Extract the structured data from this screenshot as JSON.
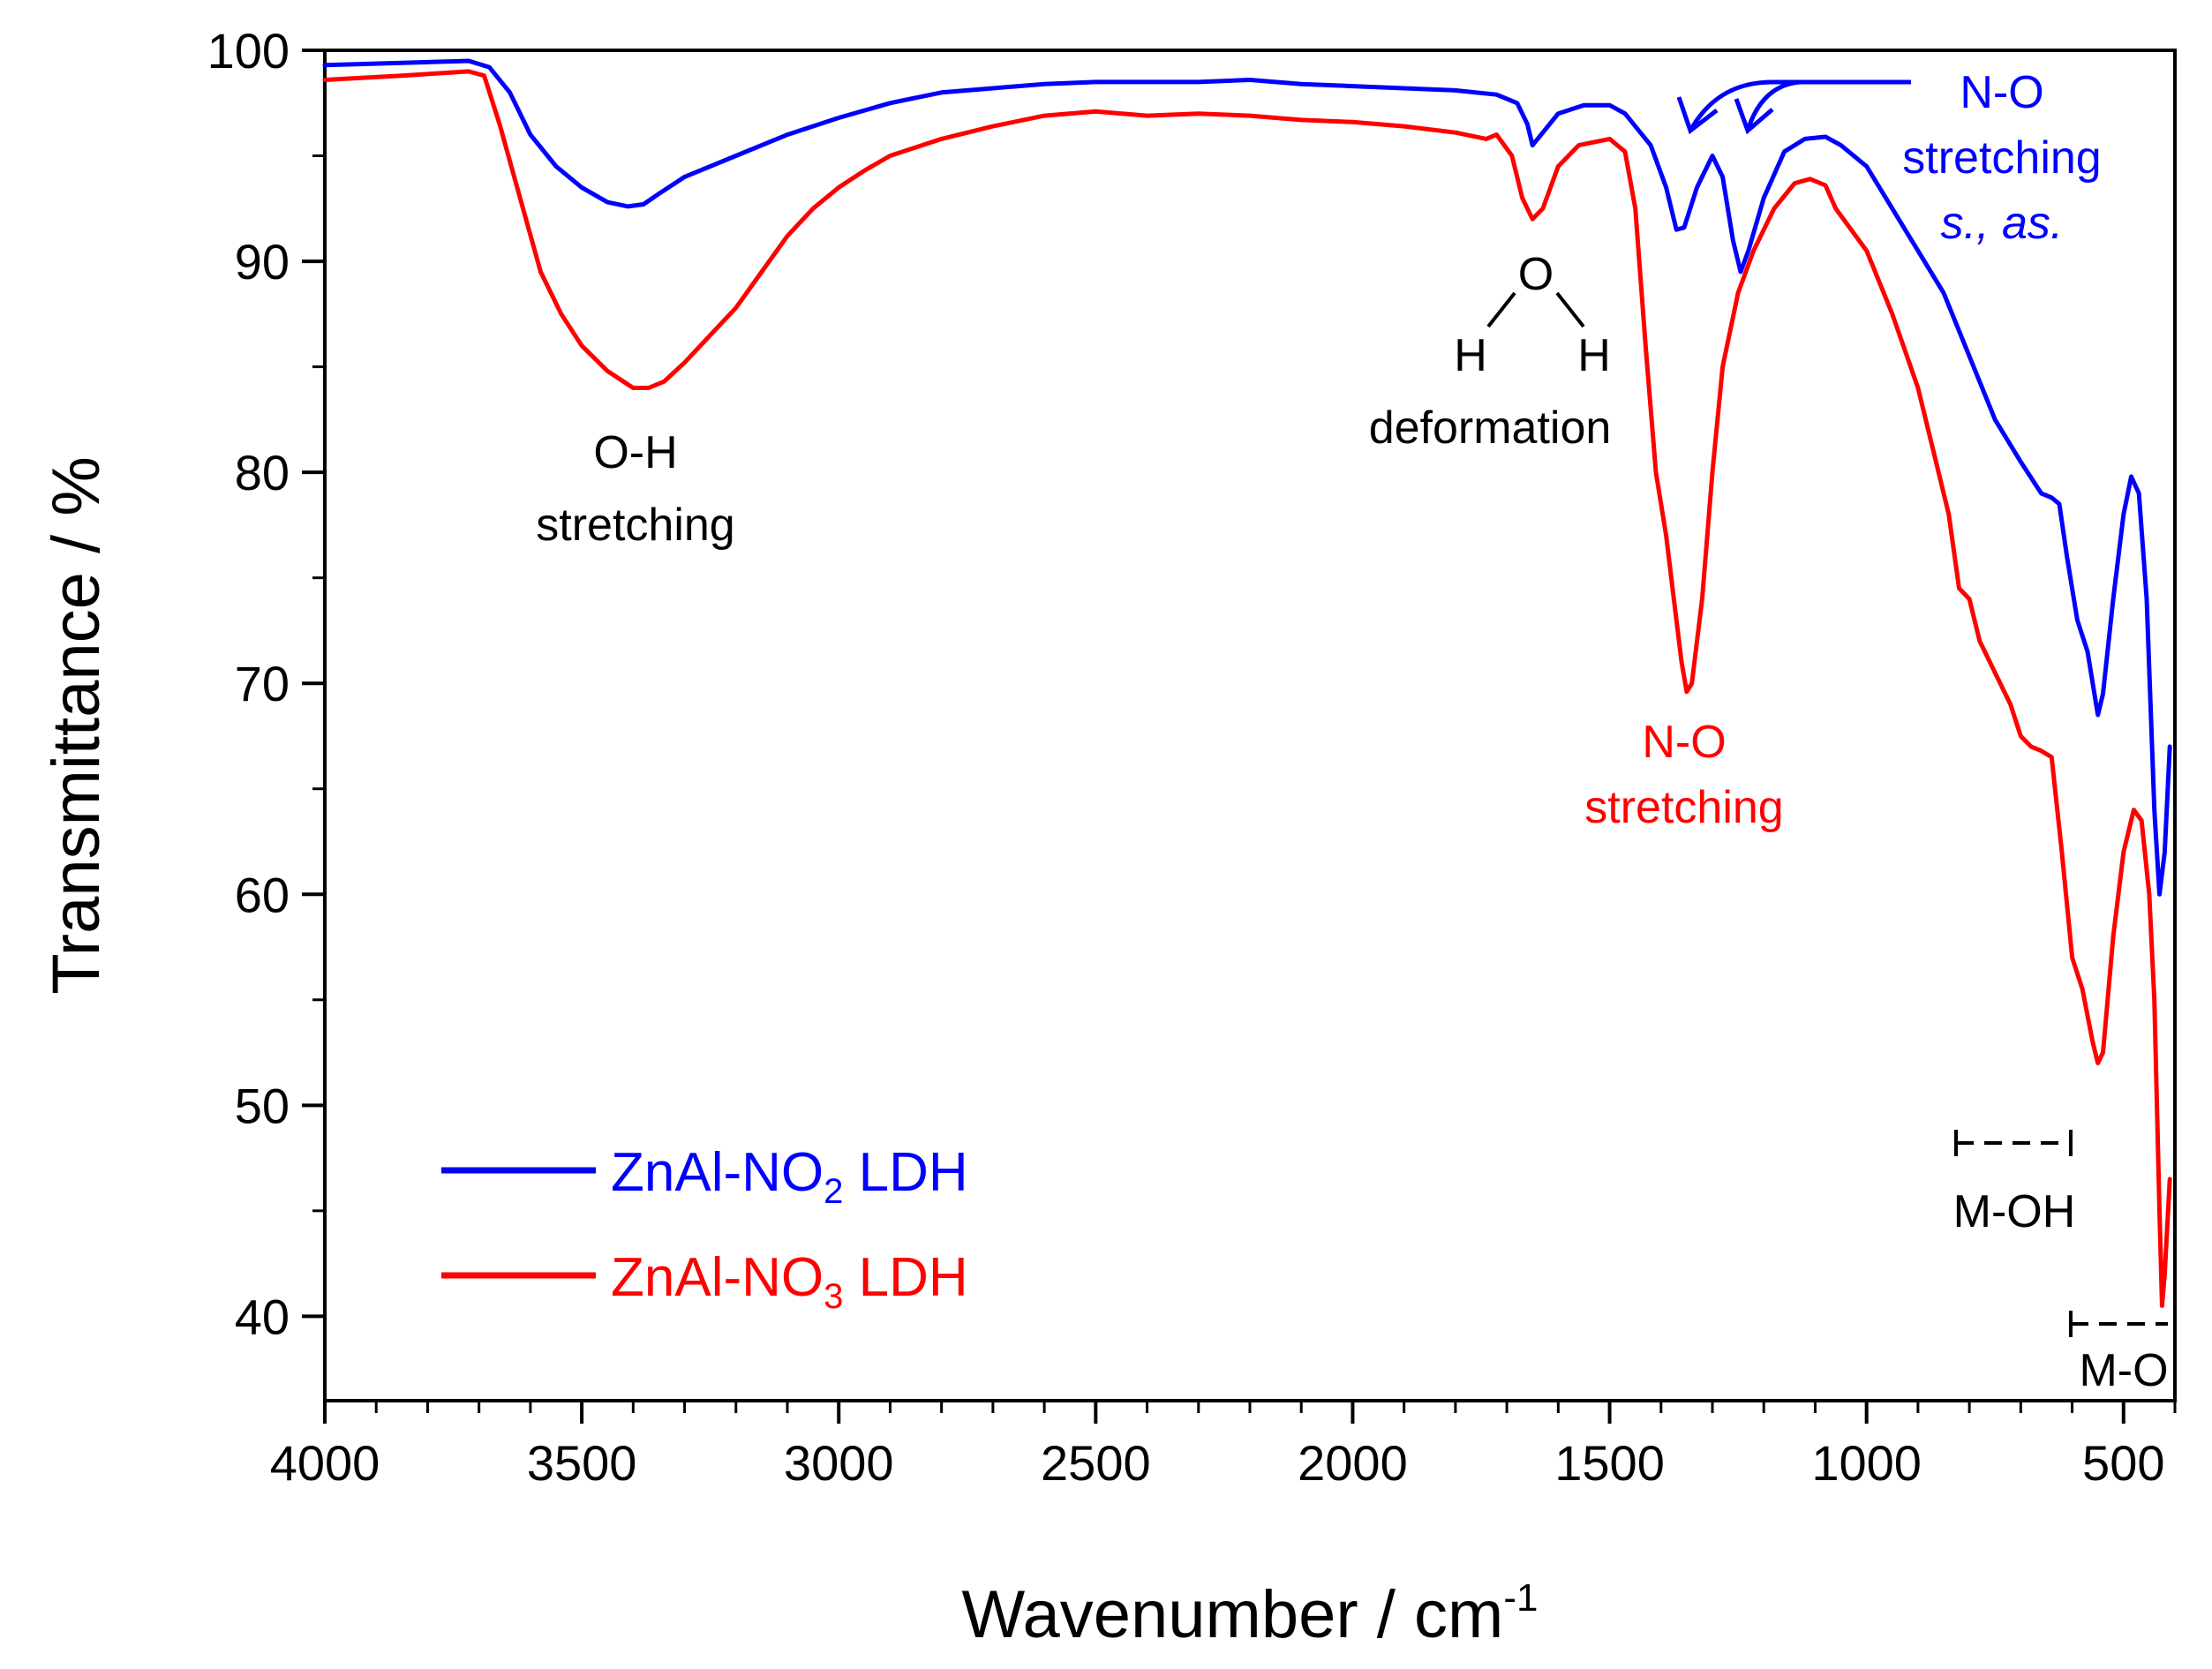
{
  "chart_data": {
    "type": "line",
    "title": "",
    "xlabel": "Wavenumber / cm",
    "xlabel_superscript": "-1",
    "ylabel": "Transmittance / %",
    "xlim": [
      4000,
      400
    ],
    "ylim": [
      36,
      100
    ],
    "x_reversed": true,
    "grid": false,
    "legend_position": "bottom-left",
    "x_ticks": [
      4000,
      3500,
      3000,
      2500,
      2000,
      1500,
      1000,
      500
    ],
    "x_tick_labels": [
      "4000",
      "3500",
      "3000",
      "2500",
      "2000",
      "1500",
      "1000",
      "500"
    ],
    "y_ticks": [
      40,
      50,
      60,
      70,
      80,
      90,
      100
    ],
    "y_tick_labels": [
      "40",
      "50",
      "60",
      "70",
      "80",
      "90",
      "100"
    ],
    "series": [
      {
        "name": "ZnAl-NO2 LDH",
        "legend_base": "ZnAl-NO",
        "legend_sub": "2",
        "legend_suffix": " LDH",
        "color": "#0000ff",
        "points": [
          [
            4000,
            99.3
          ],
          [
            3850,
            99.4
          ],
          [
            3720,
            99.5
          ],
          [
            3680,
            99.2
          ],
          [
            3640,
            98.0
          ],
          [
            3600,
            96.0
          ],
          [
            3550,
            94.5
          ],
          [
            3500,
            93.5
          ],
          [
            3450,
            92.8
          ],
          [
            3410,
            92.6
          ],
          [
            3380,
            92.7
          ],
          [
            3350,
            93.2
          ],
          [
            3300,
            94.0
          ],
          [
            3200,
            95.0
          ],
          [
            3100,
            96.0
          ],
          [
            3000,
            96.8
          ],
          [
            2900,
            97.5
          ],
          [
            2800,
            98.0
          ],
          [
            2700,
            98.2
          ],
          [
            2600,
            98.4
          ],
          [
            2500,
            98.5
          ],
          [
            2400,
            98.5
          ],
          [
            2300,
            98.5
          ],
          [
            2200,
            98.6
          ],
          [
            2100,
            98.4
          ],
          [
            2000,
            98.3
          ],
          [
            1900,
            98.2
          ],
          [
            1800,
            98.1
          ],
          [
            1720,
            97.9
          ],
          [
            1680,
            97.5
          ],
          [
            1660,
            96.5
          ],
          [
            1650,
            95.5
          ],
          [
            1640,
            95.8
          ],
          [
            1600,
            97.0
          ],
          [
            1550,
            97.4
          ],
          [
            1500,
            97.4
          ],
          [
            1470,
            97.0
          ],
          [
            1420,
            95.5
          ],
          [
            1390,
            93.5
          ],
          [
            1370,
            91.5
          ],
          [
            1355,
            91.6
          ],
          [
            1330,
            93.5
          ],
          [
            1300,
            95.0
          ],
          [
            1280,
            94.0
          ],
          [
            1260,
            91.0
          ],
          [
            1245,
            89.5
          ],
          [
            1230,
            90.5
          ],
          [
            1200,
            93.0
          ],
          [
            1160,
            95.2
          ],
          [
            1120,
            95.8
          ],
          [
            1080,
            95.9
          ],
          [
            1050,
            95.5
          ],
          [
            1000,
            94.5
          ],
          [
            950,
            92.5
          ],
          [
            900,
            90.5
          ],
          [
            850,
            88.5
          ],
          [
            800,
            85.5
          ],
          [
            750,
            82.5
          ],
          [
            700,
            80.5
          ],
          [
            660,
            79.0
          ],
          [
            640,
            78.8
          ],
          [
            625,
            78.5
          ],
          [
            610,
            76.0
          ],
          [
            590,
            73.0
          ],
          [
            570,
            71.5
          ],
          [
            550,
            68.5
          ],
          [
            540,
            69.5
          ],
          [
            520,
            74.0
          ],
          [
            500,
            78.0
          ],
          [
            485,
            79.8
          ],
          [
            470,
            79.0
          ],
          [
            455,
            74.0
          ],
          [
            440,
            64.0
          ],
          [
            430,
            60.0
          ],
          [
            420,
            62.0
          ],
          [
            410,
            67.0
          ]
        ]
      },
      {
        "name": "ZnAl-NO3 LDH",
        "legend_base": "ZnAl-NO",
        "legend_sub": "3",
        "legend_suffix": " LDH",
        "color": "#ff0000",
        "points": [
          [
            4000,
            98.6
          ],
          [
            3850,
            98.8
          ],
          [
            3720,
            99.0
          ],
          [
            3690,
            98.8
          ],
          [
            3660,
            96.5
          ],
          [
            3620,
            93.0
          ],
          [
            3580,
            89.5
          ],
          [
            3540,
            87.5
          ],
          [
            3500,
            86.0
          ],
          [
            3450,
            84.8
          ],
          [
            3400,
            84.0
          ],
          [
            3370,
            84.0
          ],
          [
            3340,
            84.3
          ],
          [
            3300,
            85.2
          ],
          [
            3250,
            86.5
          ],
          [
            3200,
            87.8
          ],
          [
            3150,
            89.5
          ],
          [
            3100,
            91.2
          ],
          [
            3050,
            92.5
          ],
          [
            3000,
            93.5
          ],
          [
            2950,
            94.3
          ],
          [
            2900,
            95.0
          ],
          [
            2800,
            95.8
          ],
          [
            2700,
            96.4
          ],
          [
            2600,
            96.9
          ],
          [
            2500,
            97.1
          ],
          [
            2400,
            96.9
          ],
          [
            2300,
            97.0
          ],
          [
            2200,
            96.9
          ],
          [
            2100,
            96.7
          ],
          [
            2000,
            96.6
          ],
          [
            1900,
            96.4
          ],
          [
            1800,
            96.1
          ],
          [
            1740,
            95.8
          ],
          [
            1720,
            96.0
          ],
          [
            1690,
            95.0
          ],
          [
            1670,
            93.0
          ],
          [
            1650,
            92.0
          ],
          [
            1630,
            92.5
          ],
          [
            1600,
            94.5
          ],
          [
            1560,
            95.5
          ],
          [
            1500,
            95.8
          ],
          [
            1470,
            95.2
          ],
          [
            1450,
            92.5
          ],
          [
            1430,
            86.0
          ],
          [
            1410,
            80.0
          ],
          [
            1390,
            77.0
          ],
          [
            1375,
            74.0
          ],
          [
            1360,
            71.0
          ],
          [
            1350,
            69.6
          ],
          [
            1340,
            70.0
          ],
          [
            1320,
            74.0
          ],
          [
            1300,
            80.0
          ],
          [
            1280,
            85.0
          ],
          [
            1250,
            88.5
          ],
          [
            1220,
            90.5
          ],
          [
            1180,
            92.5
          ],
          [
            1140,
            93.7
          ],
          [
            1110,
            93.9
          ],
          [
            1080,
            93.6
          ],
          [
            1060,
            92.5
          ],
          [
            1000,
            90.5
          ],
          [
            950,
            87.5
          ],
          [
            900,
            84.0
          ],
          [
            870,
            81.0
          ],
          [
            840,
            78.0
          ],
          [
            820,
            74.5
          ],
          [
            800,
            74.0
          ],
          [
            780,
            72.0
          ],
          [
            750,
            70.5
          ],
          [
            720,
            69.0
          ],
          [
            700,
            67.5
          ],
          [
            680,
            67.0
          ],
          [
            660,
            66.8
          ],
          [
            640,
            66.5
          ],
          [
            620,
            62.0
          ],
          [
            600,
            57.0
          ],
          [
            580,
            55.5
          ],
          [
            560,
            53.0
          ],
          [
            550,
            52.0
          ],
          [
            540,
            52.5
          ],
          [
            520,
            58.0
          ],
          [
            500,
            62.0
          ],
          [
            480,
            64.0
          ],
          [
            465,
            63.5
          ],
          [
            450,
            60.0
          ],
          [
            440,
            55.0
          ],
          [
            430,
            45.0
          ],
          [
            425,
            40.5
          ],
          [
            420,
            42.0
          ],
          [
            410,
            46.5
          ]
        ]
      }
    ],
    "annotations": [
      {
        "id": "oh",
        "lines": [
          "O-H",
          "stretching"
        ],
        "color": "#000000"
      },
      {
        "id": "water",
        "lines": [
          "O",
          "H",
          "H",
          "deformation"
        ],
        "color": "#000000"
      },
      {
        "id": "no3",
        "lines": [
          "N-O",
          "stretching"
        ],
        "color": "#ff0000"
      },
      {
        "id": "no2",
        "lines": [
          "N-O",
          "stretching",
          "s., as."
        ],
        "color": "#0000ff"
      },
      {
        "id": "moh",
        "lines": [
          "M-OH"
        ],
        "color": "#000000"
      },
      {
        "id": "mo",
        "lines": [
          "M-O"
        ],
        "color": "#000000"
      }
    ]
  }
}
